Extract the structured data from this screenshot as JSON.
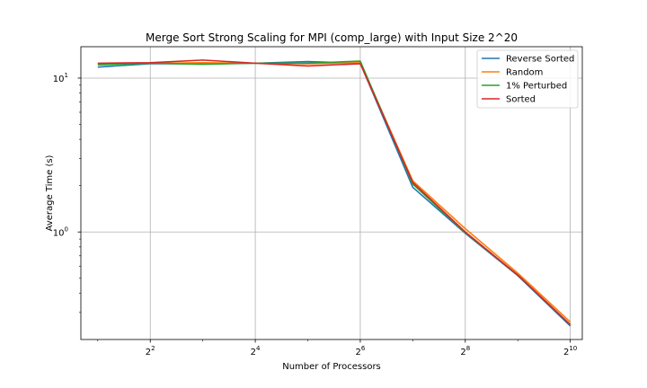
{
  "chart_data": {
    "type": "line",
    "title": "Merge Sort Strong Scaling for MPI (comp_large) with Input Size 2^20",
    "xlabel": "Number of Processors",
    "ylabel": "Average Time (s)",
    "x_scale": "log2",
    "y_scale": "log10",
    "x": [
      2,
      4,
      8,
      16,
      32,
      64,
      128,
      256,
      512,
      1024
    ],
    "x_ticks": [
      {
        "base": "2",
        "exp": "2",
        "value": 4
      },
      {
        "base": "2",
        "exp": "4",
        "value": 16
      },
      {
        "base": "2",
        "exp": "6",
        "value": 64
      },
      {
        "base": "2",
        "exp": "8",
        "value": 256
      },
      {
        "base": "2",
        "exp": "10",
        "value": 1024
      }
    ],
    "y_ticks": [
      {
        "base": "10",
        "exp": "1",
        "value": 10
      },
      {
        "base": "10",
        "exp": "0",
        "value": 1
      }
    ],
    "xlim": [
      1.6,
      1200
    ],
    "ylim": [
      0.2,
      16
    ],
    "grid": true,
    "legend_position": "top-right",
    "series": [
      {
        "name": "Reverse Sorted",
        "color": "#1f77b4",
        "values": [
          11.8,
          12.4,
          12.4,
          12.5,
          12.8,
          12.5,
          1.95,
          0.98,
          0.52,
          0.245
        ]
      },
      {
        "name": "Random",
        "color": "#ff7f0e",
        "values": [
          12.4,
          12.5,
          12.6,
          12.5,
          12.4,
          12.6,
          2.15,
          1.05,
          0.54,
          0.26
        ]
      },
      {
        "name": "1% Perturbed",
        "color": "#2ca02c",
        "values": [
          12.2,
          12.5,
          12.3,
          12.5,
          12.5,
          12.9,
          2.05,
          0.99,
          0.525,
          0.25
        ]
      },
      {
        "name": "Sorted",
        "color": "#d62728",
        "values": [
          12.5,
          12.6,
          13.1,
          12.5,
          12.0,
          12.4,
          2.1,
          1.0,
          0.525,
          0.25
        ]
      }
    ]
  }
}
